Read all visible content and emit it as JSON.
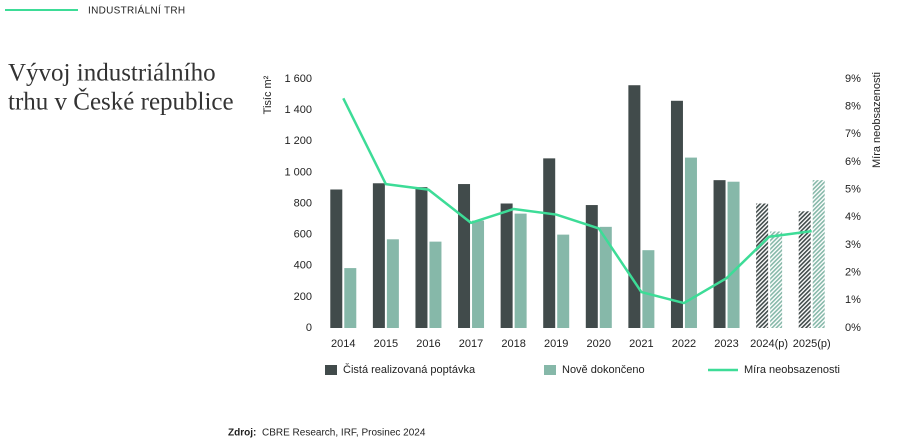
{
  "header": "INDUSTRIÁLNÍ TRH",
  "header_color": "#3ddc97",
  "title_lines": [
    "Vývoj industriálního",
    "trhu v České republice"
  ],
  "chart_data": {
    "type": "bar_line",
    "y_label": "Tisíc m²",
    "y2_label": "Míra neobsazenosti",
    "categories": [
      "2014",
      "2015",
      "2016",
      "2017",
      "2018",
      "2019",
      "2020",
      "2021",
      "2022",
      "2023",
      "2024(p)",
      "2025(p)"
    ],
    "series": [
      {
        "name": "Čistá realizovaná poptávka",
        "color": "#414b4b",
        "type": "bar",
        "hatched": [
          false,
          false,
          false,
          false,
          false,
          false,
          false,
          false,
          false,
          false,
          true,
          true
        ],
        "values": [
          890,
          930,
          905,
          925,
          800,
          1090,
          790,
          1560,
          1460,
          950,
          800,
          750
        ]
      },
      {
        "name": "Nově dokončeno",
        "color": "#86b8a9",
        "type": "bar",
        "hatched": [
          false,
          false,
          false,
          false,
          false,
          false,
          false,
          false,
          false,
          false,
          true,
          true
        ],
        "values": [
          385,
          570,
          555,
          690,
          735,
          600,
          650,
          500,
          1095,
          940,
          620,
          950
        ]
      },
      {
        "name": "Míra neobsazenosti",
        "color": "#3ddc97",
        "type": "line",
        "axis": "y2",
        "values": [
          8.3,
          5.2,
          5.0,
          3.8,
          4.3,
          4.1,
          3.6,
          1.3,
          0.9,
          1.8,
          3.3,
          3.5
        ]
      }
    ],
    "ylim": [
      0,
      1600
    ],
    "yticks": [
      0,
      200,
      400,
      600,
      800,
      {
        "value": 1000,
        "label": "1 000"
      },
      {
        "value": 1200,
        "label": "1 200"
      },
      {
        "value": 1400,
        "label": "1 400"
      },
      {
        "value": 1600,
        "label": "1 600"
      }
    ],
    "y2lim": [
      0,
      9
    ],
    "y2ticks": [
      {
        "value": 0,
        "label": "0%"
      },
      {
        "value": 1,
        "label": "1%"
      },
      {
        "value": 2,
        "label": "2%"
      },
      {
        "value": 3,
        "label": "3%"
      },
      {
        "value": 4,
        "label": "4%"
      },
      {
        "value": 5,
        "label": "5%"
      },
      {
        "value": 6,
        "label": "6%"
      },
      {
        "value": 7,
        "label": "7%"
      },
      {
        "value": 8,
        "label": "8%"
      },
      {
        "value": 9,
        "label": "9%"
      }
    ],
    "grid": false
  },
  "source_label": "Zdroj:",
  "source": "CBRE Research, IRF, Prosinec 2024"
}
